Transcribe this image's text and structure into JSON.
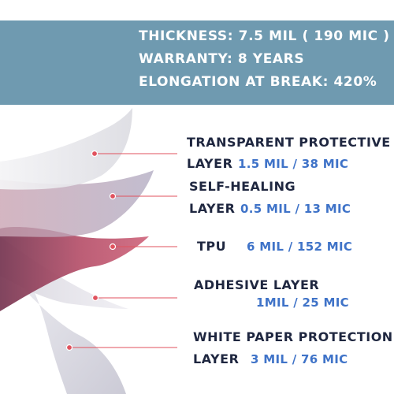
{
  "specs": {
    "thickness": "THICKNESS: 7.5 MIL ( 190 MIC )",
    "warranty": "WARRANTY: 8 YEARS",
    "elongation": "ELONGATION AT BREAK: 420%"
  },
  "layers": [
    {
      "line1": "TRANSPARENT PROTECTIVE",
      "line2": "LAYER",
      "value": "1.5 MIL / 38 MIC"
    },
    {
      "line1": "SELF-HEALING",
      "line2": "LAYER",
      "value": "0.5 MIL / 13 MIC"
    },
    {
      "line1": "TPU",
      "value": "6 MIL / 152 MIC"
    },
    {
      "line1": "ADHESIVE LAYER",
      "value": "1MIL / 25 MIC"
    },
    {
      "line1": "WHITE PAPER PROTECTION",
      "line2": "LAYER",
      "value": "3 MIL / 76 MIC"
    }
  ],
  "colors": {
    "header_bg": "#6f9ab0",
    "label": "#1f2740",
    "value": "#3f73c8",
    "pointer": "#e0525e"
  }
}
